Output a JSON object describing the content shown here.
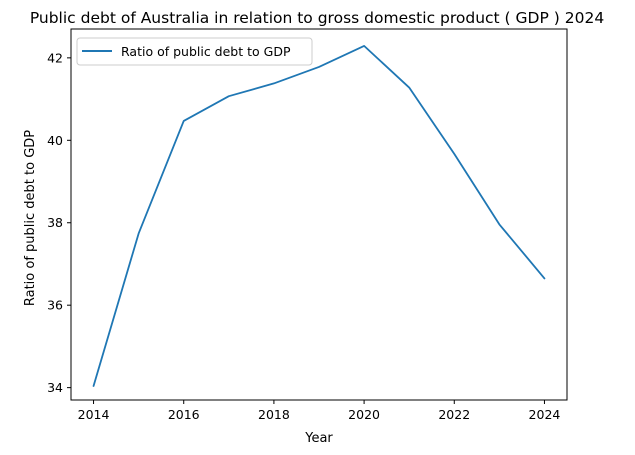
{
  "chart_data": {
    "type": "line",
    "title": "Public debt of Australia in relation to gross domestic product ( GDP ) 2024",
    "xlabel": "Year",
    "ylabel": "Ratio of public debt to GDP",
    "x": [
      2014,
      2015,
      2016,
      2017,
      2018,
      2019,
      2020,
      2021,
      2022,
      2023,
      2024
    ],
    "series": [
      {
        "name": "Ratio of public debt to GDP",
        "values": [
          34.04,
          37.74,
          40.47,
          41.07,
          41.38,
          41.78,
          42.29,
          41.28,
          39.67,
          37.96,
          36.65
        ],
        "color": "#1f77b4"
      }
    ],
    "xlim": [
      2013.5,
      2024.5
    ],
    "ylim": [
      33.7,
      42.7
    ],
    "xticks": [
      2014,
      2016,
      2018,
      2020,
      2022,
      2024
    ],
    "yticks": [
      34,
      36,
      38,
      40,
      42
    ],
    "legend_position": "top-left",
    "grid": false
  }
}
